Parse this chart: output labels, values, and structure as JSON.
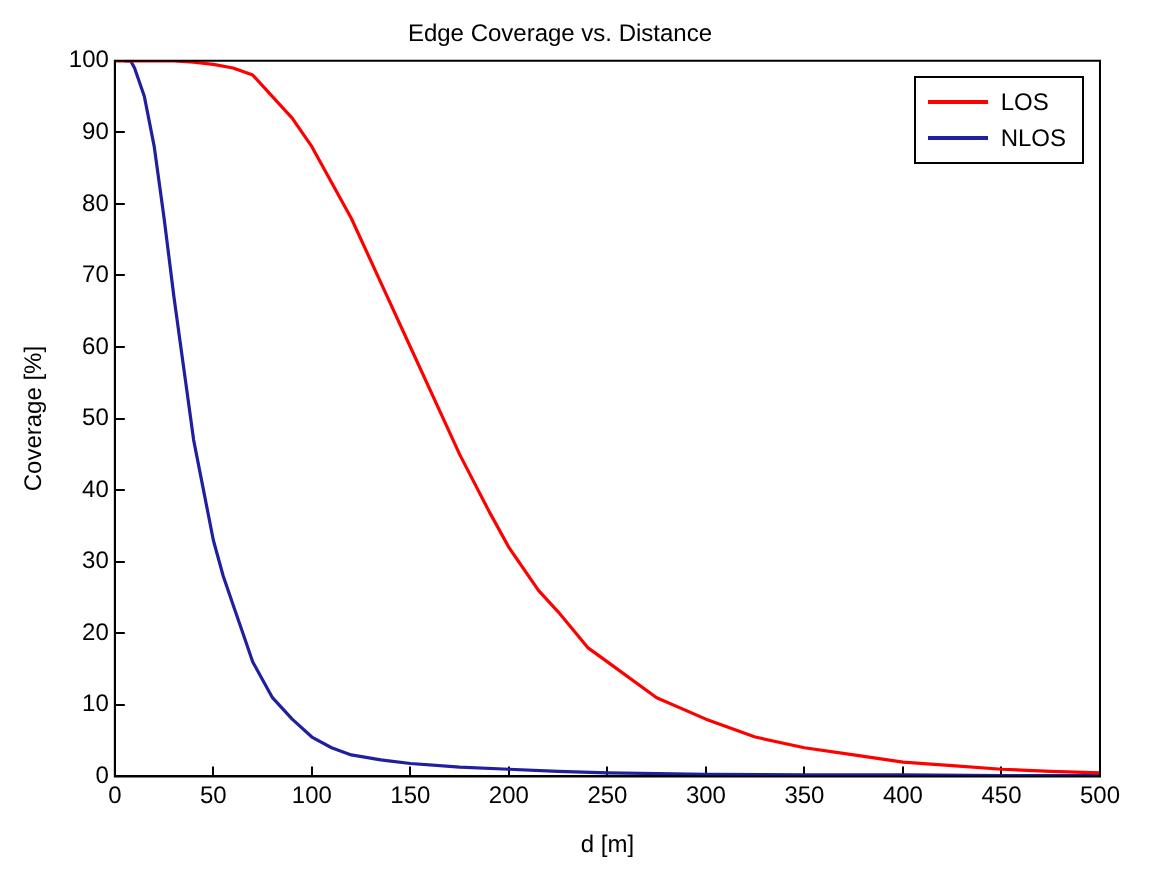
{
  "chart_data": {
    "type": "line",
    "title": "Edge Coverage vs. Distance",
    "xlabel": "d [m]",
    "ylabel": "Coverage [%]",
    "series": [
      {
        "name": "LOS",
        "color": "#ff0000",
        "x": [
          0,
          20,
          30,
          40,
          50,
          60,
          70,
          80,
          90,
          100,
          110,
          120,
          135,
          150,
          165,
          175,
          190,
          200,
          215,
          225,
          240,
          250,
          275,
          300,
          325,
          350,
          375,
          400,
          425,
          450,
          475,
          500
        ],
        "values": [
          100,
          100,
          100,
          99.8,
          99.5,
          99,
          98,
          95,
          92,
          88,
          83,
          78,
          69,
          60,
          51,
          45,
          37,
          32,
          26,
          23,
          18,
          16,
          11,
          8,
          5.5,
          4,
          3,
          2,
          1.5,
          1,
          0.7,
          0.5
        ]
      },
      {
        "name": "NLOS",
        "color": "#1f1f9f",
        "x": [
          5,
          8,
          10,
          15,
          20,
          25,
          30,
          35,
          40,
          45,
          50,
          55,
          60,
          65,
          70,
          80,
          90,
          100,
          110,
          120,
          135,
          150,
          175,
          200,
          225,
          250,
          300,
          350,
          400,
          450,
          500
        ],
        "values": [
          100,
          100,
          99,
          95,
          88,
          78,
          67,
          57,
          47,
          40,
          33,
          28,
          24,
          20,
          16,
          11,
          8,
          5.5,
          4,
          3,
          2.3,
          1.8,
          1.3,
          1,
          0.7,
          0.5,
          0.3,
          0.2,
          0.2,
          0.1,
          0.1
        ]
      }
    ],
    "xlim": [
      0,
      500
    ],
    "xticks": [
      0,
      50,
      100,
      150,
      200,
      250,
      300,
      350,
      400,
      450,
      500
    ],
    "ylim": [
      0,
      100
    ],
    "yticks": [
      0,
      10,
      20,
      30,
      40,
      50,
      60,
      70,
      80,
      90,
      100
    ],
    "grid": false,
    "legend": "top right",
    "marker": "none",
    "line_style": "solid"
  }
}
